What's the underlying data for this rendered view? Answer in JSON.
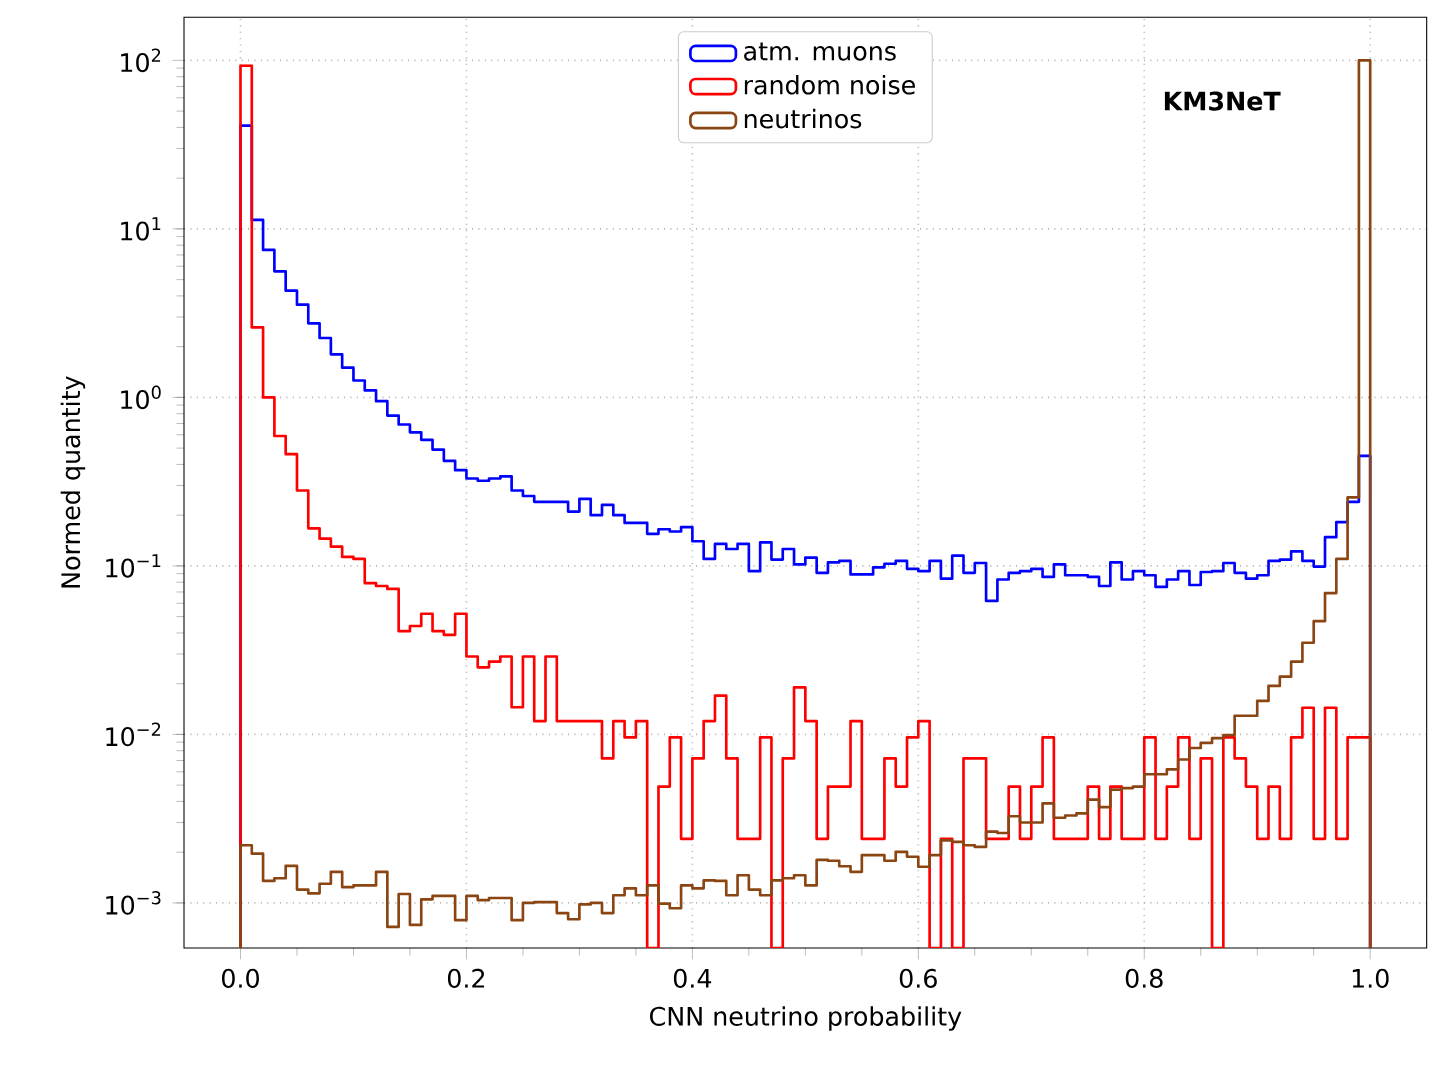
{
  "chart_data": {
    "type": "histogram",
    "xlabel": "CNN neutrino probability",
    "ylabel": "Normed quantity",
    "annotations": [
      "KM3NeT"
    ],
    "bins": [
      0,
      0.01,
      0.02,
      0.03,
      0.04,
      0.05,
      0.06,
      0.07,
      0.08,
      0.09,
      0.1,
      0.11,
      0.12,
      0.13,
      0.14,
      0.15,
      0.16,
      0.17,
      0.18,
      0.19,
      0.2,
      0.21,
      0.22,
      0.23,
      0.24,
      0.25,
      0.26,
      0.27,
      0.28,
      0.29,
      0.3,
      0.31,
      0.32,
      0.33,
      0.34,
      0.35,
      0.36,
      0.37,
      0.38,
      0.39,
      0.4,
      0.41,
      0.42,
      0.43,
      0.44,
      0.45,
      0.46,
      0.47,
      0.48,
      0.49,
      0.5,
      0.51,
      0.52,
      0.53,
      0.54,
      0.55,
      0.56,
      0.57,
      0.58,
      0.59,
      0.6,
      0.61,
      0.62,
      0.63,
      0.64,
      0.65,
      0.66,
      0.67,
      0.68,
      0.69,
      0.7,
      0.71,
      0.72,
      0.73,
      0.74,
      0.75,
      0.76,
      0.77,
      0.78,
      0.79,
      0.8,
      0.81,
      0.82,
      0.83,
      0.84,
      0.85,
      0.86,
      0.87,
      0.88,
      0.89,
      0.9,
      0.91,
      0.92,
      0.93,
      0.94,
      0.95,
      0.96,
      0.97,
      0.98,
      0.99,
      1.0
    ],
    "series": [
      {
        "name": "atm. muons",
        "color": "#0000ff",
        "values": [
          41,
          11.3,
          7.5,
          5.6,
          4.3,
          3.55,
          2.75,
          2.25,
          1.8,
          1.5,
          1.26,
          1.1,
          0.95,
          0.78,
          0.69,
          0.62,
          0.56,
          0.49,
          0.42,
          0.37,
          0.33,
          0.32,
          0.33,
          0.34,
          0.28,
          0.26,
          0.24,
          0.24,
          0.24,
          0.21,
          0.25,
          0.2,
          0.23,
          0.2,
          0.18,
          0.18,
          0.155,
          0.165,
          0.16,
          0.17,
          0.14,
          0.11,
          0.135,
          0.126,
          0.135,
          0.093,
          0.138,
          0.109,
          0.126,
          0.102,
          0.112,
          0.091,
          0.105,
          0.107,
          0.089,
          0.089,
          0.098,
          0.103,
          0.107,
          0.096,
          0.093,
          0.107,
          0.084,
          0.115,
          0.091,
          0.104,
          0.062,
          0.083,
          0.091,
          0.093,
          0.096,
          0.086,
          0.102,
          0.088,
          0.088,
          0.086,
          0.076,
          0.105,
          0.083,
          0.093,
          0.088,
          0.075,
          0.083,
          0.093,
          0.077,
          0.092,
          0.093,
          0.104,
          0.091,
          0.084,
          0.088,
          0.107,
          0.109,
          0.122,
          0.107,
          0.099,
          0.148,
          0.182,
          0.24,
          0.45
        ]
      },
      {
        "name": "random noise",
        "color": "#ff0000",
        "values": [
          93,
          2.6,
          1.0,
          0.59,
          0.46,
          0.28,
          0.167,
          0.145,
          0.13,
          0.113,
          0.11,
          0.079,
          0.076,
          0.073,
          0.041,
          0.044,
          0.052,
          0.041,
          0.039,
          0.052,
          0.029,
          0.025,
          0.027,
          0.029,
          0.0145,
          0.029,
          0.012,
          0.029,
          0.012,
          0.012,
          0.012,
          0.012,
          0.0072,
          0.012,
          0.0096,
          0.012,
          null,
          0.0049,
          0.0096,
          0.0024,
          0.0072,
          0.012,
          0.017,
          0.0072,
          0.0024,
          0.0024,
          0.0096,
          null,
          0.0072,
          0.019,
          0.012,
          0.0024,
          0.0049,
          0.0049,
          0.012,
          0.0024,
          0.0024,
          0.0072,
          0.0049,
          0.0096,
          0.012,
          null,
          0.0024,
          null,
          0.0072,
          0.0072,
          0.0024,
          0.0024,
          0.0049,
          0.0024,
          0.0049,
          0.0096,
          0.0024,
          0.0024,
          0.0024,
          0.0049,
          0.0024,
          0.0049,
          0.0024,
          0.0024,
          0.0096,
          0.0024,
          0.0049,
          0.0096,
          0.0024,
          0.0072,
          null,
          0.0096,
          0.0072,
          0.0049,
          0.0024,
          0.0049,
          0.0024,
          0.0096,
          0.0144,
          0.0024,
          0.0144,
          0.0024,
          0.0096,
          0.0096
        ]
      },
      {
        "name": "neutrinos",
        "color": "#8b4513",
        "values": [
          0.0022,
          0.00196,
          0.00135,
          0.0014,
          0.00166,
          0.0012,
          0.00114,
          0.0013,
          0.00153,
          0.00124,
          0.00127,
          0.00127,
          0.00153,
          0.00072,
          0.00113,
          0.00074,
          0.00105,
          0.0011,
          0.0011,
          0.00079,
          0.0011,
          0.00104,
          0.00107,
          0.00107,
          0.00079,
          0.001,
          0.00101,
          0.00101,
          0.00087,
          0.0008,
          0.00098,
          0.001,
          0.00087,
          0.00111,
          0.00122,
          0.00111,
          0.00127,
          0.00099,
          0.00093,
          0.00127,
          0.00122,
          0.00136,
          0.00135,
          0.00111,
          0.00146,
          0.0012,
          0.00111,
          0.00136,
          0.0014,
          0.00146,
          0.00127,
          0.0018,
          0.00178,
          0.00165,
          0.00153,
          0.00192,
          0.00192,
          0.00178,
          0.00201,
          0.00188,
          0.00164,
          0.00192,
          0.00235,
          0.0023,
          0.0022,
          0.00215,
          0.00265,
          0.0026,
          0.00327,
          0.003,
          0.003,
          0.0039,
          0.0032,
          0.0033,
          0.0034,
          0.0041,
          0.0037,
          0.0047,
          0.0048,
          0.0049,
          0.0058,
          0.0058,
          0.0062,
          0.0071,
          0.0083,
          0.0089,
          0.0095,
          0.0099,
          0.0129,
          0.0129,
          0.0158,
          0.0194,
          0.022,
          0.027,
          0.035,
          0.047,
          0.069,
          0.11,
          0.255,
          100
        ]
      }
    ],
    "xlim": [
      -0.05,
      1.05
    ],
    "ylim": [
      0.00054,
      180
    ],
    "xticks": [
      {
        "value": 0,
        "label": "0.0"
      },
      {
        "value": 0.2,
        "label": "0.2"
      },
      {
        "value": 0.4,
        "label": "0.4"
      },
      {
        "value": 0.6,
        "label": "0.6"
      },
      {
        "value": 0.8,
        "label": "0.8"
      },
      {
        "value": 1.0,
        "label": "1.0"
      }
    ],
    "yticks": [
      {
        "value": 0.001,
        "label": "10$^{−3}$"
      },
      {
        "value": 0.01,
        "label": "10$^{−2}$"
      },
      {
        "value": 0.1,
        "label": "10$^{−1}$"
      },
      {
        "value": 1,
        "label": "10$^{0}$"
      },
      {
        "value": 10,
        "label": "10$^{1}$"
      },
      {
        "value": 100,
        "label": "10$^{2}$"
      }
    ],
    "log": "y",
    "grid": true,
    "legend": "top"
  }
}
